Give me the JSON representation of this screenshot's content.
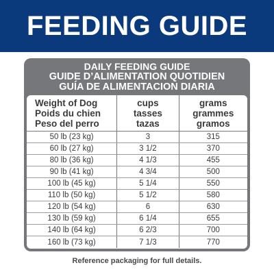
{
  "banner": {
    "title": "FEEDING GUIDE"
  },
  "guide": {
    "title_en": "DAILY FEEDING GUIDE",
    "title_fr": "GUIDE D’ALIMENTATION QUOTIDIEN",
    "title_es": "GUÍA DE ALIMENTACION DIARIA",
    "headers": {
      "weight": [
        "Weight of Dog",
        "Poids du chien",
        "Peso del perro"
      ],
      "cups": [
        "cups",
        "tasses",
        "tazas"
      ],
      "grams": [
        "grams",
        "grammes",
        "gramos"
      ]
    },
    "rows": [
      {
        "weight": "50 lb (23 kg)",
        "cups": "3",
        "grams": "315"
      },
      {
        "weight": "60 lb (27 kg)",
        "cups": "3 1/2",
        "grams": "370"
      },
      {
        "weight": "80 lb (36 kg)",
        "cups": "4 1/3",
        "grams": "455"
      },
      {
        "weight": "90 lb (41 kg)",
        "cups": "4 3/4",
        "grams": "500"
      },
      {
        "weight": "100 lb (45 kg)",
        "cups": "5 1/4",
        "grams": "550"
      },
      {
        "weight": "110 lb (50 kg)",
        "cups": "5 1/2",
        "grams": "580"
      },
      {
        "weight": "120 lb (54 kg)",
        "cups": "6",
        "grams": "630"
      },
      {
        "weight": "130 lb (59 kg)",
        "cups": "6 1/4",
        "grams": "655"
      },
      {
        "weight": "140 lb (64 kg)",
        "cups": "6 2/3",
        "grams": "700"
      },
      {
        "weight": "160 lb (73 kg)",
        "cups": "7 1/3",
        "grams": "770"
      }
    ]
  },
  "footer": {
    "note": "Reference packaging for full details."
  },
  "colors": {
    "banner_bg": "#0b3a7c",
    "box_bg": "#76777b",
    "text_dark": "#3a3a3c"
  }
}
